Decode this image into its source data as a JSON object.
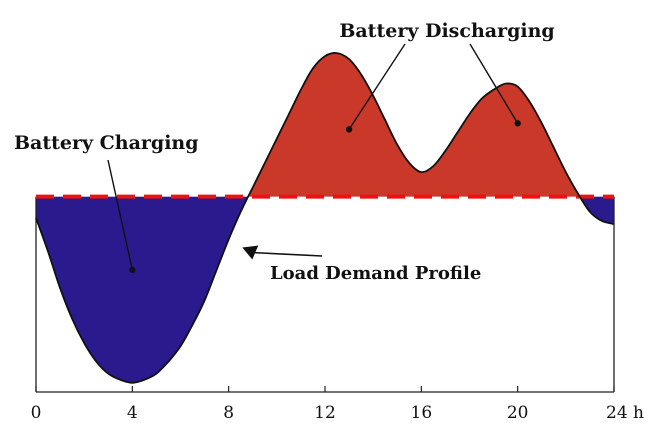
{
  "chart_data": {
    "type": "area",
    "xlabel": "",
    "ylabel": "",
    "xlim": [
      0,
      24
    ],
    "x_unit": "h",
    "x_ticks": [
      {
        "value": 0,
        "label": "0"
      },
      {
        "value": 4,
        "label": "4"
      },
      {
        "value": 8,
        "label": "8"
      },
      {
        "value": 12,
        "label": "12"
      },
      {
        "value": 16,
        "label": "16"
      },
      {
        "value": 20,
        "label": "20"
      },
      {
        "value": 24,
        "label": "24 h"
      }
    ],
    "average_level": 0,
    "ylim": [
      -3.2,
      2.4
    ],
    "load_profile": {
      "x": [
        0,
        0.5,
        1,
        1.5,
        2,
        2.5,
        3,
        3.5,
        4,
        4.5,
        5,
        5.5,
        6,
        6.5,
        7,
        7.5,
        8,
        8.5,
        9,
        9.5,
        10,
        10.5,
        11,
        11.5,
        12,
        12.5,
        13,
        13.5,
        14,
        14.5,
        15,
        15.5,
        16,
        16.5,
        17,
        17.5,
        18,
        18.5,
        19,
        19.5,
        20,
        20.5,
        21,
        21.5,
        22,
        22.5,
        23,
        23.5,
        24
      ],
      "y": [
        -0.35,
        -0.9,
        -1.5,
        -2.0,
        -2.4,
        -2.7,
        -2.9,
        -3.0,
        -3.05,
        -3.0,
        -2.9,
        -2.7,
        -2.45,
        -2.1,
        -1.7,
        -1.2,
        -0.7,
        -0.25,
        0.15,
        0.55,
        0.95,
        1.35,
        1.75,
        2.1,
        2.3,
        2.35,
        2.25,
        2.0,
        1.65,
        1.25,
        0.85,
        0.55,
        0.4,
        0.5,
        0.75,
        1.05,
        1.35,
        1.6,
        1.75,
        1.85,
        1.8,
        1.55,
        1.2,
        0.8,
        0.4,
        0.05,
        -0.25,
        -0.4,
        -0.45
      ]
    },
    "colors": {
      "charging": "#2a1a8e",
      "discharging": "#c93828",
      "average_line": "#ee1111",
      "profile_line": "#111111"
    },
    "annotations": [
      {
        "text": "Battery Discharging",
        "targets": [
          {
            "x": 13,
            "y": 1.1
          },
          {
            "x": 20,
            "y": 1.2
          }
        ]
      },
      {
        "text": "Battery Charging",
        "targets": [
          {
            "x": 4,
            "y": -1.2
          }
        ]
      },
      {
        "text": "Load Demand Profile",
        "targets": [
          {
            "x": 8.4,
            "y": -0.9
          }
        ]
      }
    ]
  }
}
